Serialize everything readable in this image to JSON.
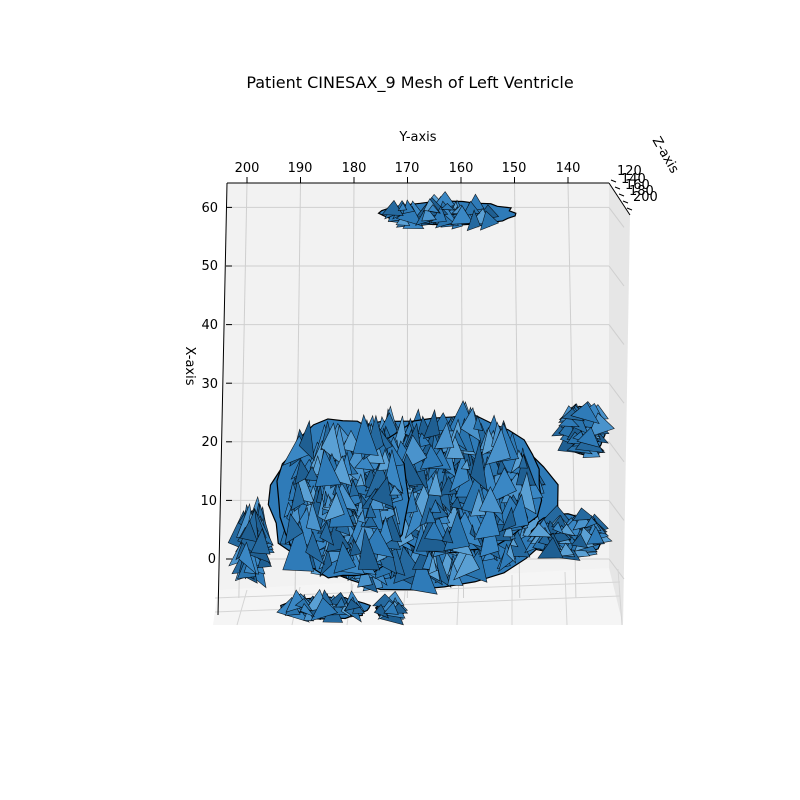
{
  "chart_data": {
    "type": "3d-mesh",
    "title": "Patient CINESAX_9 Mesh of Left Ventricle",
    "xlabel": "X-axis",
    "ylabel": "Y-axis",
    "zlabel": "Z-axis",
    "x_ticks": [
      "0",
      "10",
      "20",
      "30",
      "40",
      "50",
      "60"
    ],
    "y_ticks": [
      "200",
      "190",
      "180",
      "170",
      "160",
      "150",
      "140"
    ],
    "z_ticks": [
      "120",
      "140",
      "160",
      "180",
      "200"
    ],
    "x_range": [
      -5,
      64
    ],
    "y_range": [
      204,
      129
    ],
    "z_range": [
      120,
      200
    ],
    "mesh_face_color": "#2f7bb8",
    "mesh_edge_color": "#000000",
    "pane_color": "#f2f2f2",
    "grid": true,
    "mesh_regions": [
      {
        "name": "main body",
        "x_range": [
          -5,
          27
        ],
        "y_range": [
          142,
          196
        ]
      },
      {
        "name": "upper slice",
        "x_range": [
          57,
          61
        ],
        "y_range": [
          150,
          175
        ]
      },
      {
        "name": "left fragment",
        "x_range": [
          -3,
          8
        ],
        "y_range": [
          197,
          201
        ]
      },
      {
        "name": "right ledge",
        "x_range": [
          0,
          8
        ],
        "y_range": [
          133,
          147
        ]
      },
      {
        "name": "right lobe",
        "x_range": [
          18,
          26
        ],
        "y_range": [
          133,
          141
        ]
      }
    ]
  }
}
